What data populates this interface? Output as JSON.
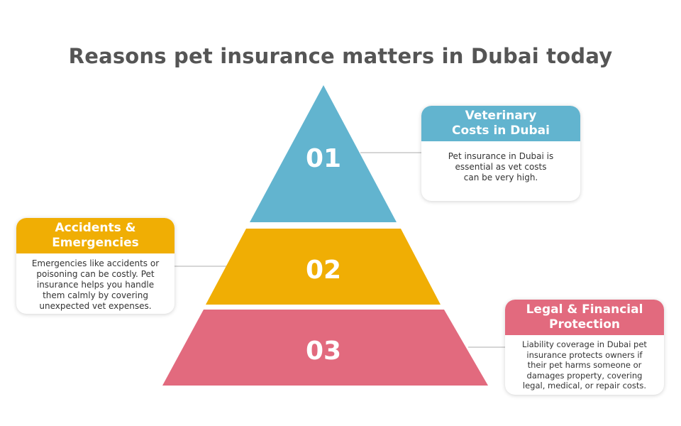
{
  "title": "Reasons pet insurance matters in Dubai today",
  "colors": {
    "teal": "#62B4CF",
    "yellow": "#F0AE04",
    "pink": "#E26A7E",
    "connector": "#C8C8C8",
    "title": "#555555"
  },
  "levels": [
    {
      "number": "01"
    },
    {
      "number": "02"
    },
    {
      "number": "03"
    }
  ],
  "cards": [
    {
      "heading": "Veterinary\nCosts in Dubai",
      "body": "Pet insurance in Dubai is\nessential as vet costs\ncan be very high."
    },
    {
      "heading": "Accidents &\nEmergencies",
      "body": "Emergencies like accidents or\npoisoning can be costly. Pet\ninsurance helps you handle\nthem calmly by covering\nunexpected vet expenses."
    },
    {
      "heading": "Legal & Financial\nProtection",
      "body": "Liability coverage in Dubai pet\ninsurance protects owners if\ntheir pet harms someone or\ndamages property, covering\nlegal, medical, or repair costs."
    }
  ]
}
